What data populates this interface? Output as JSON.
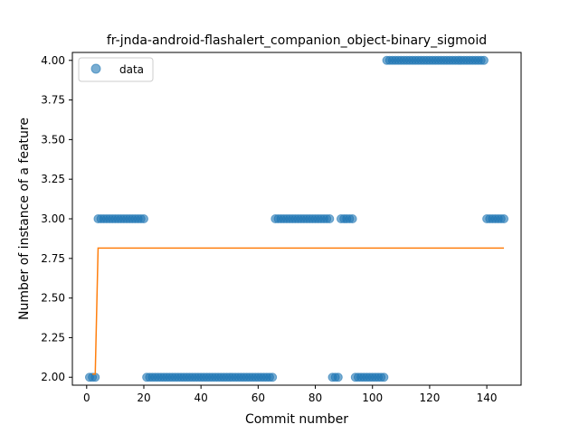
{
  "chart_data": {
    "type": "scatter",
    "title": "fr-jnda-android-flashalert_companion_object-binary_sigmoid",
    "xlabel": "Commit number",
    "ylabel": "Number of instance of a feature",
    "xlim": [
      -5,
      152
    ],
    "ylim": [
      1.95,
      4.05
    ],
    "xticks": [
      0,
      20,
      40,
      60,
      80,
      100,
      120,
      140
    ],
    "yticks": [
      "2.00",
      "2.25",
      "2.50",
      "2.75",
      "3.00",
      "3.25",
      "3.50",
      "3.75",
      "4.00"
    ],
    "legend": {
      "position": "top-left",
      "entries": [
        "data"
      ]
    },
    "grid": false,
    "series": [
      {
        "name": "data",
        "kind": "scatter",
        "color": "#1f77b4",
        "x": [
          1,
          2,
          3,
          4,
          5,
          6,
          7,
          8,
          9,
          10,
          11,
          12,
          13,
          14,
          15,
          16,
          17,
          18,
          19,
          20,
          21,
          22,
          23,
          24,
          25,
          26,
          27,
          28,
          29,
          30,
          31,
          32,
          33,
          34,
          35,
          36,
          37,
          38,
          39,
          40,
          41,
          42,
          43,
          44,
          45,
          46,
          47,
          48,
          49,
          50,
          51,
          52,
          53,
          54,
          55,
          56,
          57,
          58,
          59,
          60,
          61,
          62,
          63,
          64,
          65,
          66,
          67,
          68,
          69,
          70,
          71,
          72,
          73,
          74,
          75,
          76,
          77,
          78,
          79,
          80,
          81,
          82,
          83,
          84,
          85,
          86,
          87,
          88,
          89,
          90,
          91,
          92,
          93,
          94,
          95,
          96,
          97,
          98,
          99,
          100,
          101,
          102,
          103,
          104,
          105,
          106,
          107,
          108,
          109,
          110,
          111,
          112,
          113,
          114,
          115,
          116,
          117,
          118,
          119,
          120,
          121,
          122,
          123,
          124,
          125,
          126,
          127,
          128,
          129,
          130,
          131,
          132,
          133,
          134,
          135,
          136,
          137,
          138,
          139,
          140,
          141,
          142,
          143,
          144,
          145,
          146
        ],
        "y": [
          2,
          2,
          2,
          3,
          3,
          3,
          3,
          3,
          3,
          3,
          3,
          3,
          3,
          3,
          3,
          3,
          3,
          3,
          3,
          3,
          2,
          2,
          2,
          2,
          2,
          2,
          2,
          2,
          2,
          2,
          2,
          2,
          2,
          2,
          2,
          2,
          2,
          2,
          2,
          2,
          2,
          2,
          2,
          2,
          2,
          2,
          2,
          2,
          2,
          2,
          2,
          2,
          2,
          2,
          2,
          2,
          2,
          2,
          2,
          2,
          2,
          2,
          2,
          2,
          2,
          3,
          3,
          3,
          3,
          3,
          3,
          3,
          3,
          3,
          3,
          3,
          3,
          3,
          3,
          3,
          3,
          3,
          3,
          3,
          3,
          2,
          2,
          2,
          3,
          3,
          3,
          3,
          3,
          2,
          2,
          2,
          2,
          2,
          2,
          2,
          2,
          2,
          2,
          2,
          4,
          4,
          4,
          4,
          4,
          4,
          4,
          4,
          4,
          4,
          4,
          4,
          4,
          4,
          4,
          4,
          4,
          4,
          4,
          4,
          4,
          4,
          4,
          4,
          4,
          4,
          4,
          4,
          4,
          4,
          4,
          4,
          4,
          4,
          4,
          3,
          3,
          3,
          3,
          3,
          3,
          3
        ]
      },
      {
        "name": "",
        "kind": "line",
        "color": "#ff7f0e",
        "x": [
          2,
          3,
          4,
          146
        ],
        "y": [
          2.02,
          2.02,
          2.815,
          2.815
        ]
      }
    ]
  }
}
